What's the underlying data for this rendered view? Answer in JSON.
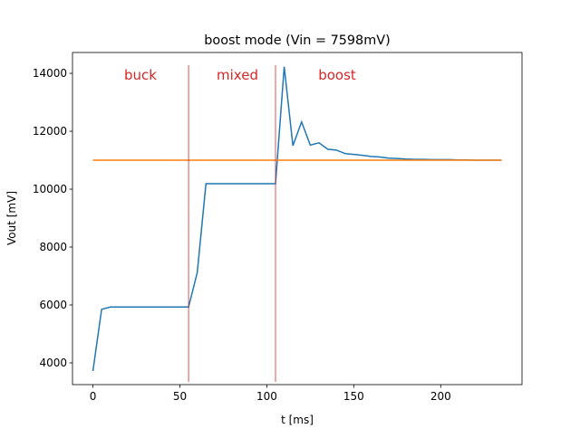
{
  "chart_data": {
    "type": "line",
    "title": "boost mode (Vin = 7598mV)",
    "xlabel": "t [ms]",
    "ylabel": "Vout [mV]",
    "xlim": [
      -11.75,
      246.75
    ],
    "ylim": [
      3250,
      14720
    ],
    "xticks": [
      0,
      50,
      100,
      150,
      200
    ],
    "yticks": [
      4000,
      6000,
      8000,
      10000,
      12000,
      14000
    ],
    "grid": false,
    "series": [
      {
        "color": "#1f77b4",
        "x": [
          0,
          5,
          10,
          15,
          20,
          25,
          30,
          35,
          40,
          45,
          50,
          55,
          60,
          65,
          70,
          75,
          80,
          85,
          90,
          95,
          100,
          105,
          110,
          115,
          120,
          125,
          130,
          135,
          140,
          145,
          150,
          155,
          160,
          165,
          170,
          175,
          180,
          185,
          190,
          195,
          200,
          205,
          210,
          215,
          220,
          225,
          230,
          235
        ],
        "values": [
          3720,
          5850,
          5930,
          5930,
          5930,
          5930,
          5930,
          5930,
          5930,
          5930,
          5930,
          5930,
          7120,
          10190,
          10190,
          10190,
          10190,
          10190,
          10190,
          10190,
          10190,
          10190,
          14230,
          11500,
          12320,
          11520,
          11600,
          11380,
          11350,
          11230,
          11200,
          11170,
          11130,
          11110,
          11070,
          11060,
          11040,
          11030,
          11030,
          11020,
          11020,
          11020,
          11010,
          11010,
          11000,
          11000,
          11000,
          11000
        ]
      },
      {
        "color": "#ff7f0e",
        "x": [
          0,
          235
        ],
        "values": [
          11000,
          11000
        ]
      }
    ],
    "vlines": [
      55,
      105
    ],
    "vline_color": "#d62728",
    "annotations": [
      "buck",
      "mixed",
      "boost"
    ]
  }
}
